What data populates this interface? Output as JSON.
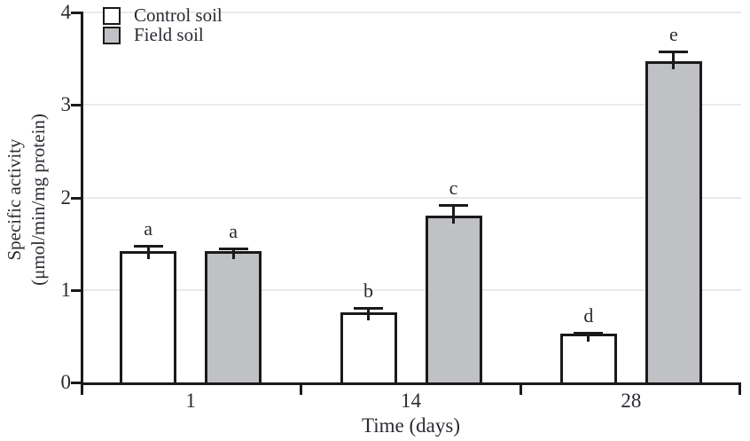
{
  "chart_data": {
    "type": "bar",
    "title": "",
    "xlabel": "Time (days)",
    "ylabel_line1": "Specific activity",
    "ylabel_line2": "(μmol/min/mg protein)",
    "categories": [
      "1",
      "14",
      "28"
    ],
    "series": [
      {
        "name": "Control soil",
        "fill": "#ffffff",
        "values": [
          1.42,
          0.76,
          0.53
        ],
        "errors": [
          0.07,
          0.06,
          0.02
        ],
        "point_labels": [
          "a",
          "b",
          "d"
        ]
      },
      {
        "name": "Field soil",
        "fill": "#c0c1c5",
        "values": [
          1.42,
          1.8,
          3.47
        ],
        "errors": [
          0.04,
          0.13,
          0.12
        ],
        "point_labels": [
          "a",
          "c",
          "e"
        ]
      }
    ],
    "ylim": [
      0,
      4
    ],
    "yticks": [
      "0",
      "1",
      "2",
      "3",
      "4"
    ],
    "grid": "horizontal",
    "legend_position": "top-left",
    "colors": {
      "axis": "#1a1a1a",
      "text": "#2a2a32",
      "gridline": "#e9e9e9",
      "bar_border": "#1a1a1a",
      "control_fill": "#ffffff",
      "field_fill": "#c0c1c5"
    }
  }
}
